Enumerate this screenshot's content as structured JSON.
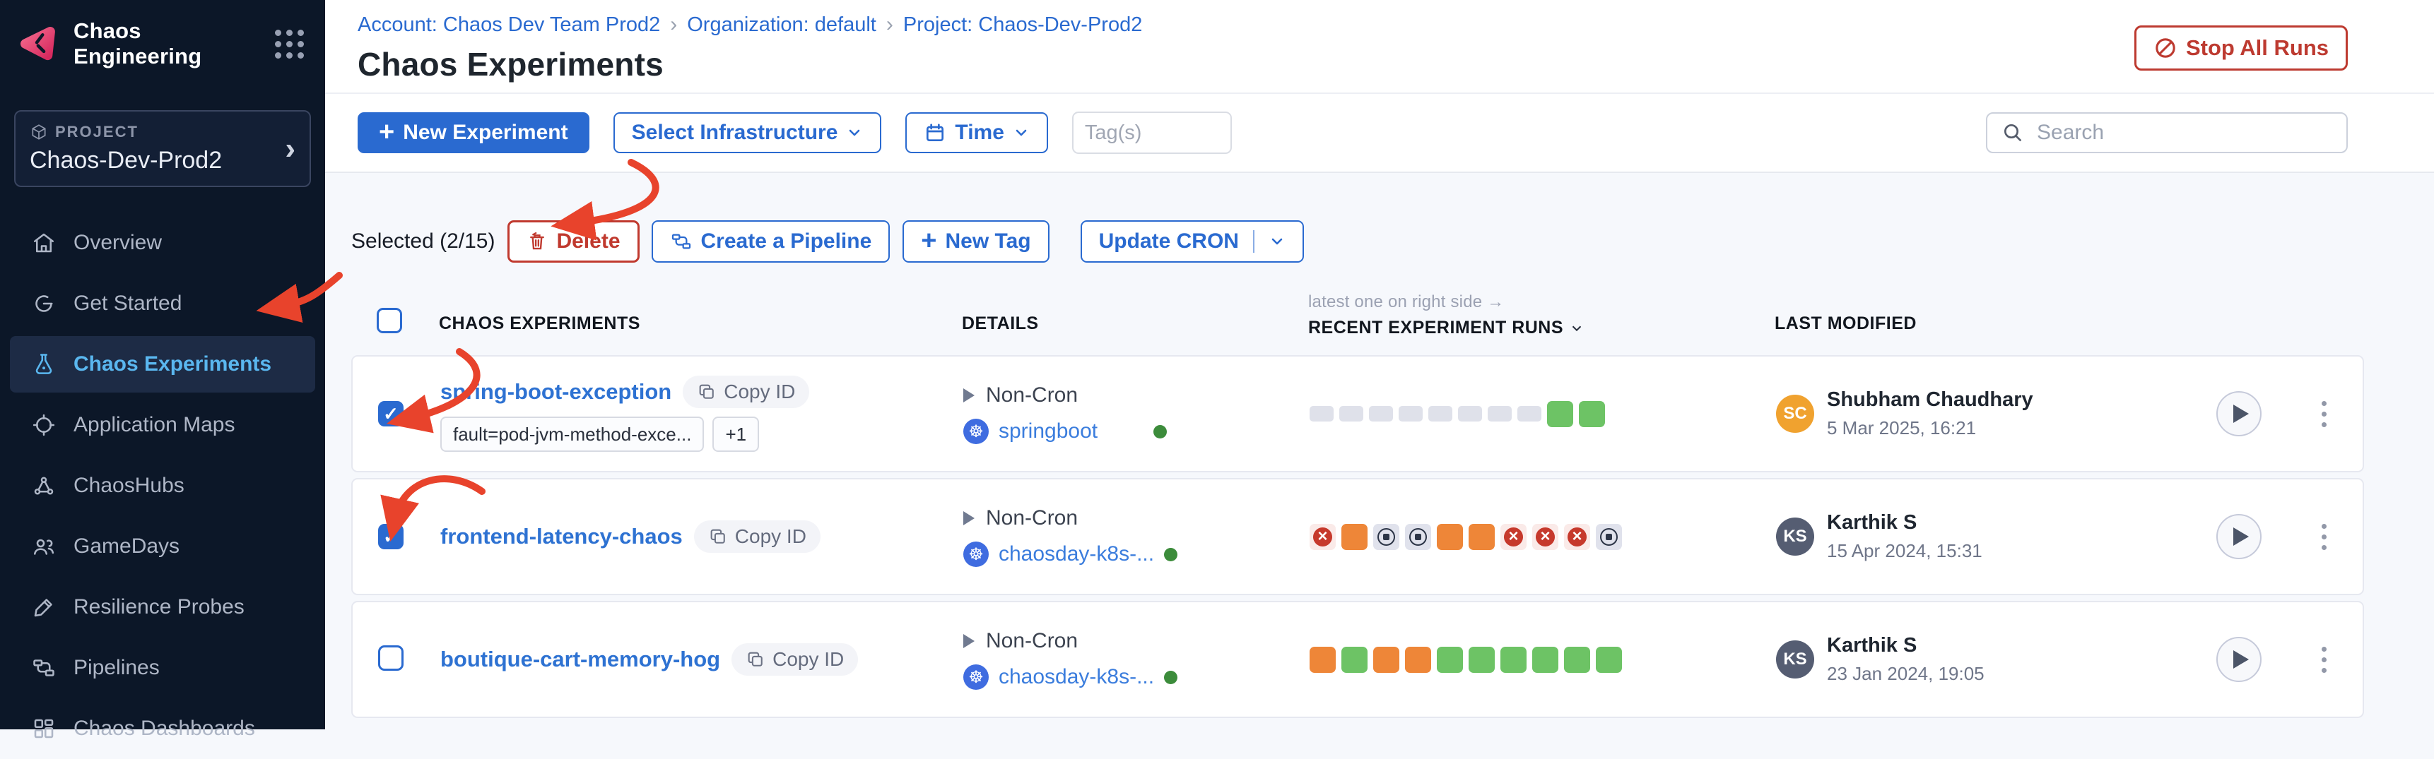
{
  "brand": {
    "app_title": "Chaos Engineering"
  },
  "project_selector": {
    "label": "PROJECT",
    "name": "Chaos-Dev-Prod2"
  },
  "sidebar": {
    "items": [
      {
        "label": "Overview",
        "icon": "home-icon",
        "active": false
      },
      {
        "label": "Get Started",
        "icon": "get-started-icon",
        "active": false
      },
      {
        "label": "Chaos Experiments",
        "icon": "flask-icon",
        "active": true
      },
      {
        "label": "Application Maps",
        "icon": "target-icon",
        "active": false
      },
      {
        "label": "ChaosHubs",
        "icon": "hub-icon",
        "active": false
      },
      {
        "label": "GameDays",
        "icon": "people-icon",
        "active": false
      },
      {
        "label": "Resilience Probes",
        "icon": "pen-icon",
        "active": false
      },
      {
        "label": "Pipelines",
        "icon": "pipeline-icon",
        "active": false
      },
      {
        "label": "Chaos Dashboards",
        "icon": "dashboard-icon",
        "active": false
      }
    ]
  },
  "breadcrumb": {
    "items": [
      "Account: Chaos Dev Team Prod2",
      "Organization: default",
      "Project: Chaos-Dev-Prod2"
    ],
    "separator": "›"
  },
  "page": {
    "title": "Chaos Experiments"
  },
  "header_actions": {
    "stop_all_runs": "Stop All Runs"
  },
  "toolbar": {
    "new_experiment": "New Experiment",
    "select_infrastructure": "Select Infrastructure",
    "time": "Time",
    "tags_placeholder": "Tag(s)",
    "search_placeholder": "Search"
  },
  "selection_bar": {
    "selected_text": "Selected (2/15)",
    "delete": "Delete",
    "create_pipeline": "Create a Pipeline",
    "new_tag": "New Tag",
    "update_cron": "Update CRON"
  },
  "table": {
    "headers": {
      "experiments": "CHAOS EXPERIMENTS",
      "details": "DETAILS",
      "runs": "RECENT EXPERIMENT RUNS",
      "runs_note": "latest one on right side →",
      "modified": "LAST MODIFIED"
    },
    "rows": [
      {
        "name": "spring-boot-exception",
        "copy_id": "Copy ID",
        "checked": true,
        "tags": [
          "fault=pod-jvm-method-exce...",
          "+1"
        ],
        "schedule": "Non-Cron",
        "infra": "springboot",
        "infra_status": "active",
        "runs": [
          "na",
          "na",
          "na",
          "na",
          "na",
          "na",
          "na",
          "na",
          "ok",
          "ok"
        ],
        "modified_by": {
          "initials": "SC",
          "name": "Shubham Chaudhary",
          "date": "5 Mar 2025, 16:21",
          "avatar_color": "#f0a22f"
        }
      },
      {
        "name": "frontend-latency-chaos",
        "copy_id": "Copy ID",
        "checked": true,
        "tags": [],
        "schedule": "Non-Cron",
        "infra": "chaosday-k8s-...",
        "infra_status": "active",
        "runs": [
          "fail",
          "orange",
          "stop",
          "stop",
          "orange",
          "orange",
          "fail",
          "fail",
          "fail",
          "stop"
        ],
        "modified_by": {
          "initials": "KS",
          "name": "Karthik S",
          "date": "15 Apr 2024, 15:31",
          "avatar_color": "#555d72"
        }
      },
      {
        "name": "boutique-cart-memory-hog",
        "copy_id": "Copy ID",
        "checked": false,
        "tags": [],
        "schedule": "Non-Cron",
        "infra": "chaosday-k8s-...",
        "infra_status": "active",
        "runs": [
          "orange",
          "ok",
          "orange",
          "orange",
          "ok",
          "ok",
          "ok",
          "ok",
          "ok",
          "ok"
        ],
        "modified_by": {
          "initials": "KS",
          "name": "Karthik S",
          "date": "23 Jan 2024, 19:05",
          "avatar_color": "#555d72"
        }
      }
    ]
  },
  "colors": {
    "primary_blue": "#2a6ad0",
    "danger_red": "#bd3a30",
    "sidebar_bg": "#0c1728",
    "sidebar_active_text": "#5ab7ef",
    "brand_pink": "#e42a5e",
    "run_success": "#6dc365",
    "run_running": "#ee8638",
    "run_failed": "#c6392c",
    "run_na": "#dfe1ea",
    "status_green": "#3c8c3b",
    "annotation": "#e8432c"
  },
  "annotations": {
    "color": "#e8432c",
    "arrows": [
      "to-delete-button",
      "to-sidebar-chaos-experiments",
      "to-row1-checkbox",
      "to-row2-checkbox"
    ]
  }
}
